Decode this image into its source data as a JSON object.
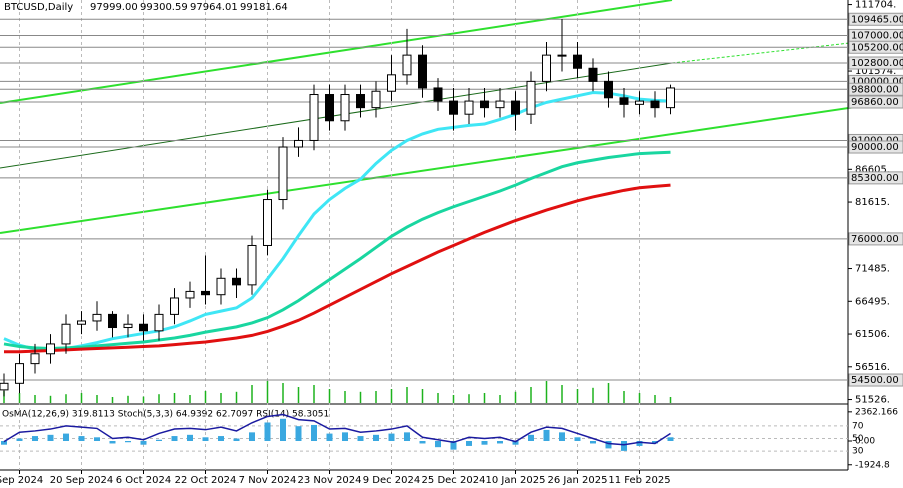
{
  "chart_data": {
    "type": "candlestick",
    "title": "BTCUSD,Daily",
    "header_values": [
      "97999.00",
      "99300.59",
      "97964.01",
      "99181.64"
    ],
    "categories": [
      null,
      "Sep 2024",
      null,
      null,
      null,
      "20 Sep 2024",
      null,
      null,
      null,
      "6 Oct 2024",
      null,
      null,
      null,
      "22 Oct 2024",
      null,
      null,
      null,
      "7 Nov 2024",
      null,
      null,
      null,
      "23 Nov 2024",
      null,
      null,
      null,
      "9 Dec 2024",
      null,
      null,
      null,
      "25 Dec 2024",
      null,
      null,
      null,
      "10 Jan 2025",
      null,
      null,
      null,
      "26 Jan 2025",
      null,
      null,
      null,
      "11 Feb 2025",
      null,
      null
    ],
    "open": [
      53000,
      54000,
      57000,
      58500,
      60000,
      63000,
      63500,
      64500,
      62500,
      63000,
      62000,
      64500,
      67000,
      68000,
      67500,
      70000,
      69000,
      75000,
      82000,
      90000,
      91000,
      98000,
      94000,
      98000,
      96000,
      98500,
      101000,
      104000,
      99000,
      97000,
      95000,
      97000,
      96000,
      97000,
      95000,
      100000,
      104000,
      104000,
      102000,
      100000,
      97500,
      96500,
      97000,
      96000
    ],
    "high": [
      55500,
      58500,
      60000,
      61500,
      64500,
      65000,
      66500,
      65000,
      64500,
      64500,
      66000,
      68500,
      69500,
      73500,
      71500,
      71500,
      76500,
      83500,
      91500,
      93000,
      99500,
      99500,
      99500,
      99500,
      100000,
      104000,
      108000,
      105500,
      100500,
      99000,
      99000,
      99000,
      99000,
      98500,
      101500,
      106000,
      109500,
      106000,
      103500,
      101500,
      99000,
      98500,
      98500,
      99500
    ],
    "low": [
      52000,
      52500,
      55500,
      57000,
      58500,
      61500,
      62000,
      61000,
      61000,
      60500,
      60500,
      63000,
      65500,
      66000,
      66000,
      67000,
      67500,
      73500,
      80500,
      88500,
      89500,
      92500,
      92500,
      94500,
      94500,
      97000,
      99500,
      97500,
      95500,
      92500,
      93500,
      94500,
      94500,
      92500,
      93500,
      98500,
      101500,
      100500,
      98500,
      96000,
      94500,
      95000,
      94500,
      95000
    ],
    "close": [
      54000,
      57000,
      58500,
      60000,
      63000,
      63500,
      64500,
      62500,
      63000,
      62000,
      64500,
      67000,
      68000,
      67500,
      70000,
      69000,
      75000,
      82000,
      90000,
      91000,
      98000,
      94000,
      98000,
      96000,
      98500,
      101000,
      104000,
      99000,
      97000,
      95000,
      97000,
      96000,
      97000,
      95000,
      100000,
      104000,
      104000,
      102000,
      100000,
      97500,
      96500,
      97000,
      96000,
      99000
    ],
    "moving_averages": [
      {
        "color": "#3fe6f5",
        "values": [
          60800,
          59800,
          59200,
          59000,
          59300,
          59700,
          60200,
          60800,
          61200,
          61600,
          62000,
          62600,
          63500,
          64500,
          65000,
          65500,
          67000,
          69900,
          73000,
          76500,
          79800,
          82000,
          83700,
          85100,
          87500,
          89500,
          91000,
          92000,
          92700,
          93000,
          93300,
          93500,
          94200,
          95000,
          96000,
          96800,
          97300,
          97800,
          98300,
          98200,
          97800,
          97300,
          97100,
          97000
        ]
      },
      {
        "color": "#19d6a0",
        "values": [
          60000,
          59600,
          59400,
          59300,
          59400,
          59500,
          59700,
          59900,
          60100,
          60300,
          60600,
          60900,
          61300,
          61800,
          62200,
          62600,
          63200,
          64000,
          65200,
          66600,
          68200,
          69800,
          71400,
          73000,
          74700,
          76400,
          77800,
          79000,
          80000,
          80900,
          81700,
          82500,
          83300,
          84200,
          85200,
          86100,
          87000,
          87600,
          88000,
          88400,
          88700,
          89000,
          89100,
          89200
        ]
      },
      {
        "color": "#e01010",
        "values": [
          58800,
          58800,
          58900,
          59000,
          59100,
          59200,
          59300,
          59400,
          59500,
          59600,
          59700,
          59900,
          60100,
          60300,
          60600,
          60900,
          61300,
          61900,
          62700,
          63600,
          64700,
          65900,
          67100,
          68300,
          69500,
          70700,
          71800,
          72900,
          74000,
          75000,
          76000,
          77000,
          77900,
          78800,
          79600,
          80400,
          81100,
          81800,
          82400,
          82900,
          83400,
          83800,
          84000,
          84200
        ]
      }
    ],
    "volumes": {
      "color": "#1db31d",
      "values": [
        30,
        25,
        20,
        18,
        22,
        25,
        20,
        15,
        18,
        16,
        22,
        25,
        20,
        30,
        25,
        28,
        45,
        55,
        50,
        40,
        45,
        35,
        30,
        28,
        30,
        35,
        40,
        35,
        25,
        20,
        22,
        25,
        20,
        28,
        40,
        55,
        45,
        35,
        38,
        50,
        30,
        25,
        20,
        15
      ]
    },
    "ylim": [
      51000,
      112400
    ],
    "yticks": [
      {
        "value": 111704,
        "label": "111704."
      },
      {
        "value": 101574,
        "label": "101574."
      },
      {
        "value": 86605,
        "label": "86605."
      },
      {
        "value": 81615,
        "label": "81615."
      },
      {
        "value": 71485,
        "label": "71485."
      },
      {
        "value": 66495,
        "label": "66495."
      },
      {
        "value": 61506,
        "label": "61506."
      },
      {
        "value": 56516,
        "label": "56516."
      },
      {
        "value": 51526,
        "label": "51526."
      }
    ],
    "levels": [
      {
        "value": 109465,
        "label": "109465.00"
      },
      {
        "value": 107000,
        "label": "107000.00"
      },
      {
        "value": 105200,
        "label": "105200.00"
      },
      {
        "value": 102800,
        "label": "102800.00"
      },
      {
        "value": 100000,
        "label": "100000.00"
      },
      {
        "value": 98800,
        "label": "98800.00"
      },
      {
        "value": 96860,
        "label": "96860.00"
      },
      {
        "value": 91000,
        "label": "91000.00"
      },
      {
        "value": 90000,
        "label": "90000.00"
      },
      {
        "value": 85300,
        "label": "85300.00"
      },
      {
        "value": 76000,
        "label": "76000.00"
      },
      {
        "value": 54500,
        "label": "54500.00"
      }
    ],
    "indicator": {
      "label": "OsMA(12,26,9) 319.8113  Stoch(5,3,3) 64.9392 62.7097  RSI(14) 58.3051",
      "osma": {
        "color": "#3aa8e0",
        "ylim": [
          -2349,
          2754
        ],
        "yticks": [
          2362.166,
          {
            "value": 0,
            "label": "0.00"
          },
          -1924.8
        ],
        "values": [
          -300,
          200,
          400,
          500,
          600,
          400,
          300,
          -200,
          -100,
          -300,
          100,
          400,
          500,
          300,
          400,
          200,
          700,
          1500,
          1800,
          1200,
          1300,
          600,
          700,
          400,
          500,
          600,
          700,
          -200,
          -500,
          -700,
          -400,
          -300,
          -200,
          -300,
          500,
          900,
          700,
          300,
          -200,
          -600,
          -800,
          -400,
          -200,
          300
        ]
      },
      "rsi": {
        "color": "#1a1aa0",
        "ylim": [
          0,
          100
        ],
        "yticks": [
          70,
          50,
          30
        ],
        "values": [
          45,
          60,
          62,
          65,
          70,
          68,
          66,
          50,
          52,
          48,
          58,
          65,
          66,
          64,
          68,
          62,
          75,
          85,
          88,
          80,
          78,
          65,
          66,
          60,
          62,
          65,
          70,
          52,
          48,
          44,
          52,
          50,
          52,
          45,
          60,
          68,
          66,
          58,
          50,
          42,
          40,
          44,
          42,
          58
        ]
      }
    }
  }
}
